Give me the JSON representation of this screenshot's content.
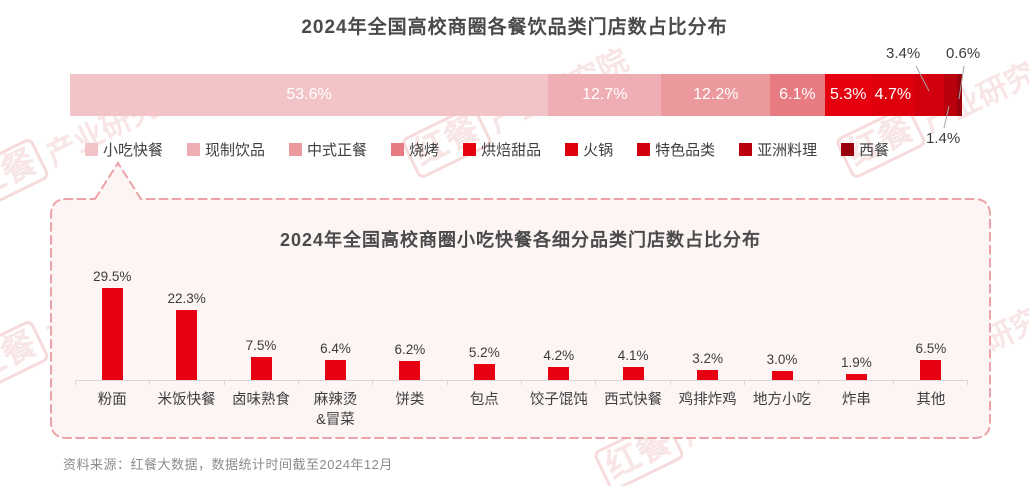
{
  "page": {
    "watermark_logo": "红餐",
    "watermark_text": "产业研究院",
    "source_note": "资料来源：红餐大数据，数据统计时间截至2024年12月"
  },
  "chart_data": [
    {
      "type": "bar",
      "variant": "stacked-horizontal",
      "title": "2024年全国高校商圈各餐饮品类门店数占比分布",
      "categories": [
        "小吃快餐",
        "现制饮品",
        "中式正餐",
        "烧烤",
        "烘焙甜品",
        "火锅",
        "特色品类",
        "亚洲料理",
        "西餐"
      ],
      "values": [
        53.6,
        12.7,
        12.2,
        6.1,
        5.3,
        4.7,
        3.4,
        1.4,
        0.6
      ],
      "unit": "%",
      "colors": [
        "#f2c3c7",
        "#efaeb3",
        "#ec999e",
        "#e87b81",
        "#e6000f",
        "#df000e",
        "#d2000e",
        "#bb000d",
        "#99000b"
      ],
      "legend_position": "bottom",
      "label_format": "percent",
      "inside_label_min_value": 4.0,
      "outside_labeled_categories": [
        "特色品类",
        "亚洲料理",
        "西餐"
      ]
    },
    {
      "type": "bar",
      "title": "2024年全国高校商圈小吃快餐各细分品类门店数占比分布",
      "categories": [
        "粉面",
        "米饭快餐",
        "卤味熟食",
        "麻辣烫\n&冒菜",
        "饼类",
        "包点",
        "饺子馄饨",
        "西式快餐",
        "鸡排炸鸡",
        "地方小吃",
        "炸串",
        "其他"
      ],
      "values": [
        29.5,
        22.3,
        7.5,
        6.4,
        6.2,
        5.2,
        4.2,
        4.1,
        3.2,
        3.0,
        1.9,
        6.5
      ],
      "unit": "%",
      "bar_color": "#e60012",
      "ylim": [
        0,
        32
      ],
      "grid": false,
      "legend_position": "none"
    }
  ],
  "style": {
    "panel_bg": "#fdf4f4",
    "panel_border": "#eba3a7",
    "callout_line": "#a6a6a6"
  }
}
